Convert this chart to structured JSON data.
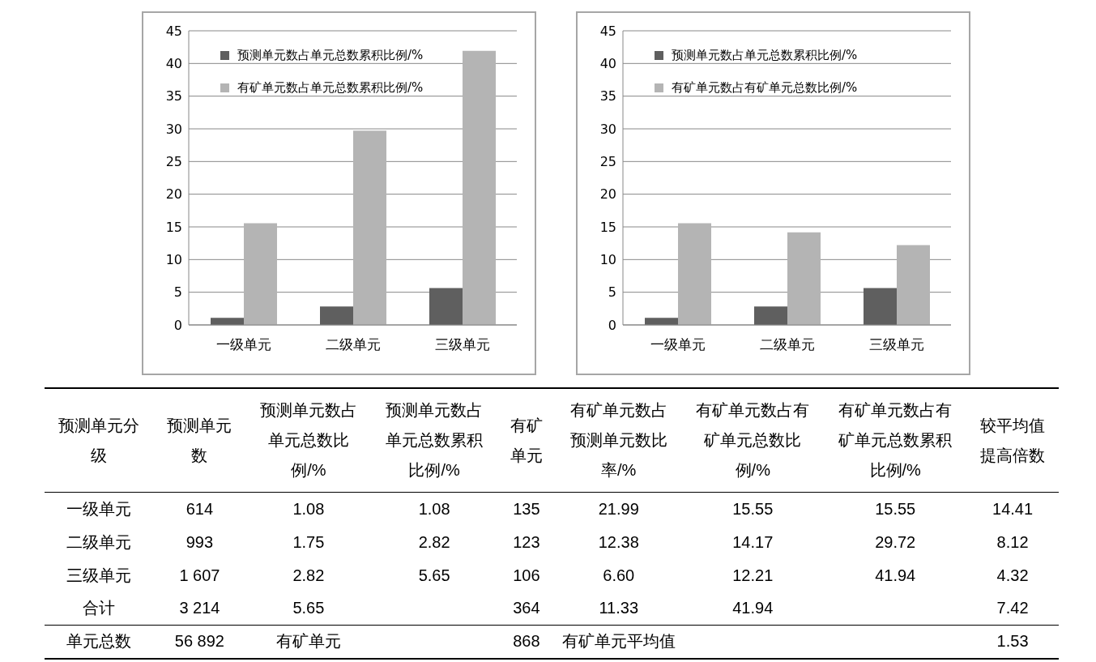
{
  "chart_data": [
    {
      "type": "bar",
      "categories": [
        "一级单元",
        "二级单元",
        "三级单元"
      ],
      "series": [
        {
          "name": "预测单元数占单元总数累积比例/%",
          "color": "#5f5f5f",
          "values": [
            1.08,
            2.82,
            5.65
          ]
        },
        {
          "name": "有矿单元数占单元总数累积比例/%",
          "color": "#b4b4b4",
          "values": [
            15.55,
            29.72,
            41.94
          ]
        }
      ],
      "ylim": [
        0,
        45
      ],
      "yticks": [
        0,
        5,
        10,
        15,
        20,
        25,
        30,
        35,
        40,
        45
      ],
      "grid": "y",
      "legend": "top left"
    },
    {
      "type": "bar",
      "categories": [
        "一级单元",
        "二级单元",
        "三级单元"
      ],
      "series": [
        {
          "name": "预测单元数占单元总数累积比例/%",
          "color": "#5f5f5f",
          "values": [
            1.08,
            2.82,
            5.65
          ]
        },
        {
          "name": "有矿单元数占有矿单元总数比例/%",
          "color": "#b4b4b4",
          "values": [
            15.55,
            14.17,
            12.21
          ]
        }
      ],
      "ylim": [
        0,
        45
      ],
      "yticks": [
        0,
        5,
        10,
        15,
        20,
        25,
        30,
        35,
        40,
        45
      ],
      "grid": "y",
      "legend": "top left"
    },
    {
      "type": "other",
      "categories": [
        "预测单元分级",
        "预测单元数",
        "预测单元数占单元总数比例/%",
        "预测单元数占单元总数累积比例/%",
        "有矿单元",
        "有矿单元数占预测单元数比率/%",
        "有矿单元数占有矿单元总数比例/%",
        "有矿单元数占有矿单元总数累积比例/%",
        "较平均值提高倍数"
      ],
      "y_categories": [
        "一级单元",
        "二级单元",
        "三级单元",
        "合计",
        "单元总数"
      ],
      "cell_labels": [
        [
          "614",
          "1.08",
          "1.08",
          "135",
          "21.99",
          "15.55",
          "15.55",
          "14.41"
        ],
        [
          "993",
          "1.75",
          "2.82",
          "123",
          "12.38",
          "14.17",
          "29.72",
          "8.12"
        ],
        [
          "1 607",
          "2.82",
          "5.65",
          "106",
          "6.60",
          "12.21",
          "41.94",
          "4.32"
        ],
        [
          "3 214",
          "5.65",
          null,
          "364",
          "11.33",
          "41.94",
          null,
          "7.42"
        ],
        [
          "56 892",
          "有矿单元",
          null,
          "868",
          "有矿单元平均值",
          null,
          null,
          "1.53"
        ]
      ]
    }
  ]
}
